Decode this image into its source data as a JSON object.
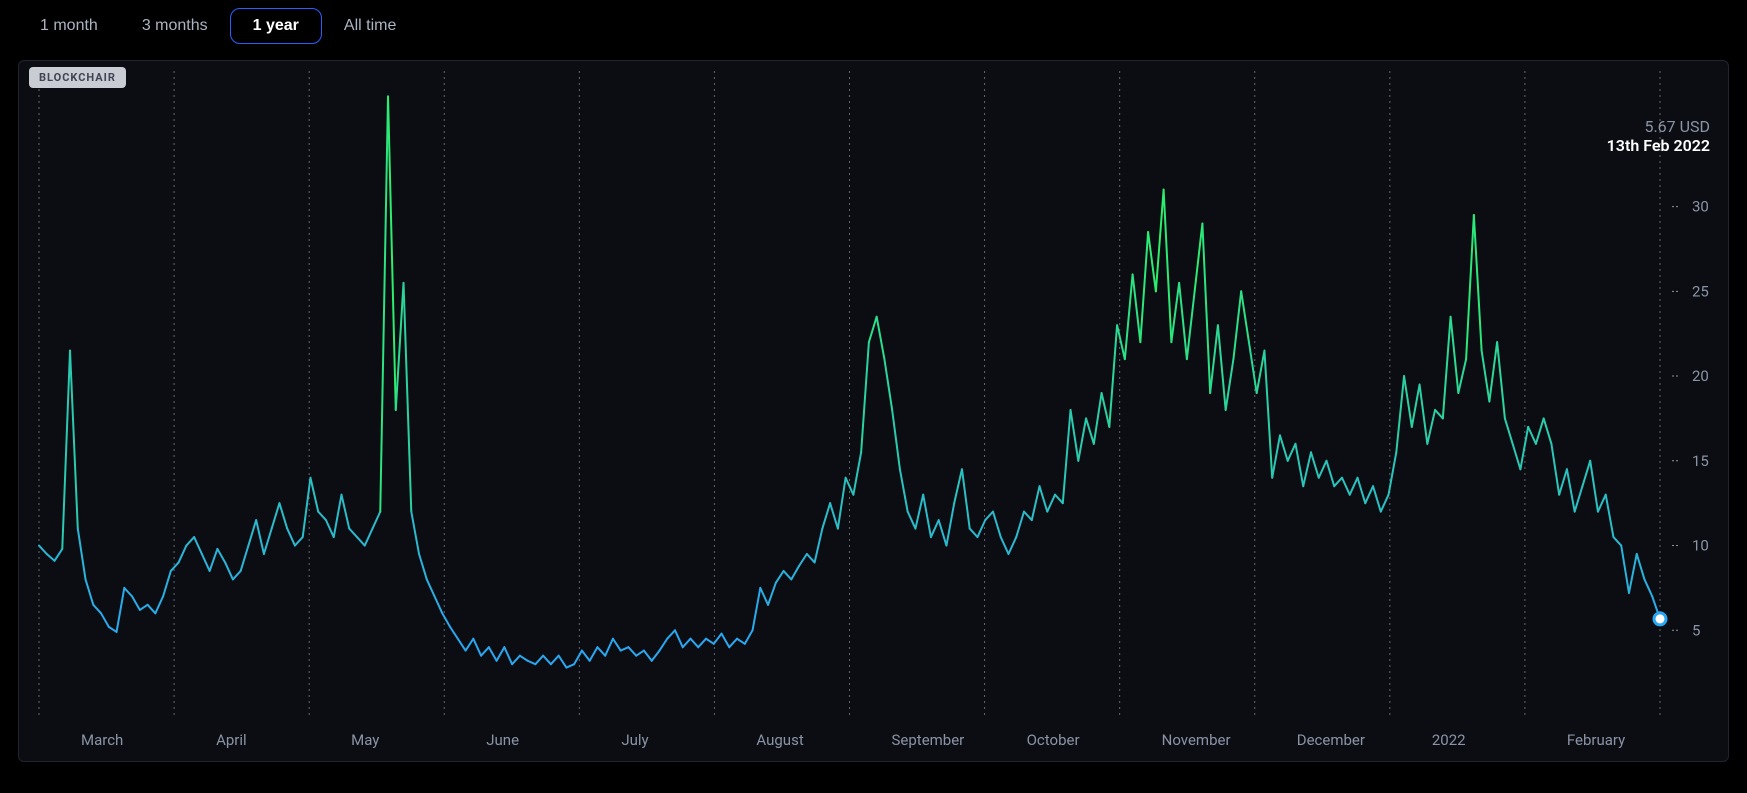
{
  "tabs": [
    {
      "label": "1 month",
      "active": false
    },
    {
      "label": "3 months",
      "active": false
    },
    {
      "label": "1 year",
      "active": true
    },
    {
      "label": "All time",
      "active": false
    }
  ],
  "watermark": "BLOCKCHAIR",
  "tooltip": {
    "value": "5.67 USD",
    "date": "13th Feb 2022"
  },
  "chart": {
    "type": "line",
    "background_color": "#0b0d12",
    "grid_color": "#9aa3b2",
    "axis_label_color": "#8a94a6",
    "axis_fontsize": 15,
    "line_width": 2,
    "gradient_low_color": "#2aa7f0",
    "gradient_high_color": "#2dff4d",
    "end_marker_fill": "#ffffff",
    "end_marker_stroke": "#2aa7f0",
    "end_marker_radius": 6,
    "ytick_start": 5,
    "ytick_step": 5,
    "ytick_end": 30,
    "ymin": 0,
    "ymax": 38,
    "x_labels": [
      "March",
      "April",
      "May",
      "June",
      "July",
      "August",
      "September",
      "October",
      "November",
      "December",
      "2022",
      "February"
    ],
    "series": [
      10.0,
      9.5,
      9.1,
      9.8,
      21.5,
      11.0,
      8.0,
      6.5,
      6.0,
      5.2,
      4.9,
      7.5,
      7.0,
      6.2,
      6.5,
      6.0,
      7.0,
      8.5,
      9.0,
      10.0,
      10.5,
      9.5,
      8.5,
      9.8,
      9.0,
      8.0,
      8.5,
      10.0,
      11.5,
      9.5,
      11.0,
      12.5,
      11.0,
      10.0,
      10.5,
      14.0,
      12.0,
      11.5,
      10.5,
      13.0,
      11.0,
      10.5,
      10.0,
      11.0,
      12.0,
      36.5,
      18.0,
      25.5,
      12.0,
      9.5,
      8.0,
      7.0,
      6.0,
      5.2,
      4.5,
      3.8,
      4.5,
      3.5,
      4.0,
      3.2,
      4.0,
      3.0,
      3.5,
      3.2,
      3.0,
      3.5,
      3.0,
      3.5,
      2.8,
      3.0,
      3.8,
      3.2,
      4.0,
      3.5,
      4.5,
      3.8,
      4.0,
      3.5,
      3.8,
      3.2,
      3.8,
      4.5,
      5.0,
      4.0,
      4.5,
      4.0,
      4.5,
      4.2,
      4.8,
      4.0,
      4.5,
      4.2,
      5.0,
      7.5,
      6.5,
      7.8,
      8.5,
      8.0,
      8.8,
      9.5,
      9.0,
      11.0,
      12.5,
      11.0,
      14.0,
      13.0,
      15.5,
      22.0,
      23.5,
      21.0,
      18.0,
      14.5,
      12.0,
      11.0,
      13.0,
      10.5,
      11.5,
      10.0,
      12.5,
      14.5,
      11.0,
      10.5,
      11.5,
      12.0,
      10.5,
      9.5,
      10.5,
      12.0,
      11.5,
      13.5,
      12.0,
      13.0,
      12.5,
      18.0,
      15.0,
      17.5,
      16.0,
      19.0,
      17.0,
      23.0,
      21.0,
      26.0,
      22.0,
      28.5,
      25.0,
      31.0,
      22.0,
      25.5,
      21.0,
      25.0,
      29.0,
      19.0,
      23.0,
      18.0,
      21.0,
      25.0,
      22.0,
      19.0,
      21.5,
      14.0,
      16.5,
      15.0,
      16.0,
      13.5,
      15.5,
      14.0,
      15.0,
      13.5,
      14.0,
      13.0,
      14.0,
      12.5,
      13.5,
      12.0,
      13.0,
      15.5,
      20.0,
      17.0,
      19.5,
      16.0,
      18.0,
      17.5,
      23.5,
      19.0,
      21.0,
      29.5,
      21.5,
      18.5,
      22.0,
      17.5,
      16.0,
      14.5,
      17.0,
      16.0,
      17.5,
      16.0,
      13.0,
      14.5,
      12.0,
      13.5,
      15.0,
      12.0,
      13.0,
      10.5,
      10.0,
      7.2,
      9.5,
      8.0,
      7.0,
      5.67
    ]
  }
}
